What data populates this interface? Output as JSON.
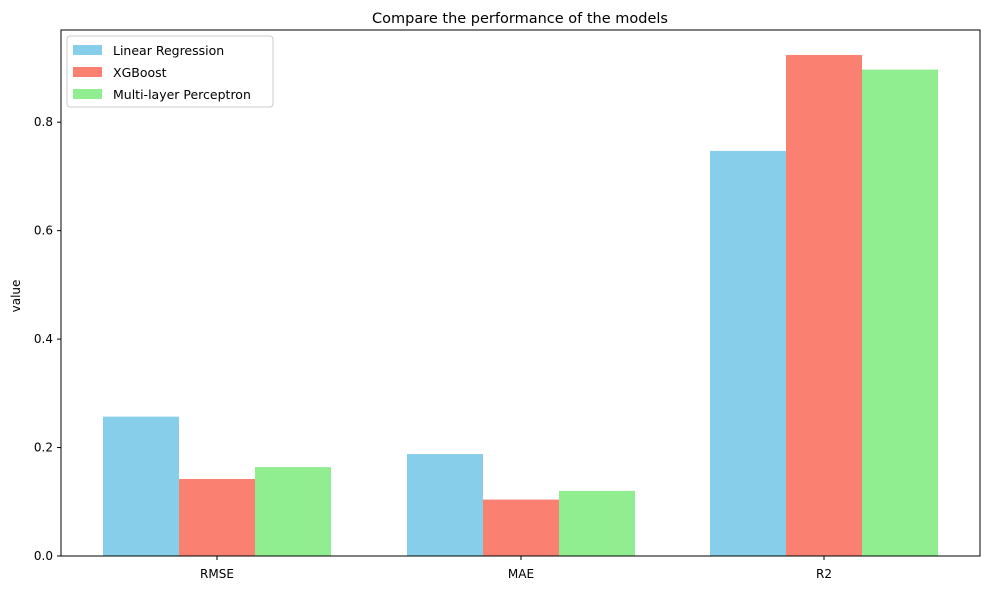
{
  "chart_data": {
    "type": "bar",
    "title": "Compare the performance of the models",
    "xlabel": "",
    "ylabel": "value",
    "categories": [
      "RMSE",
      "MAE",
      "R2"
    ],
    "series": [
      {
        "name": "Linear Regression",
        "values": [
          0.257,
          0.188,
          0.747
        ],
        "color": "#87ceeb"
      },
      {
        "name": "XGBoost",
        "values": [
          0.142,
          0.104,
          0.924
        ],
        "color": "#fa8072"
      },
      {
        "name": "Multi-layer Perceptron",
        "values": [
          0.164,
          0.12,
          0.897
        ],
        "color": "#90ee90"
      }
    ],
    "ylim": [
      0,
      0.97
    ],
    "yticks": [
      "0.0",
      "0.2",
      "0.4",
      "0.6",
      "0.8"
    ],
    "grid": false,
    "legend_position": "top-left"
  }
}
